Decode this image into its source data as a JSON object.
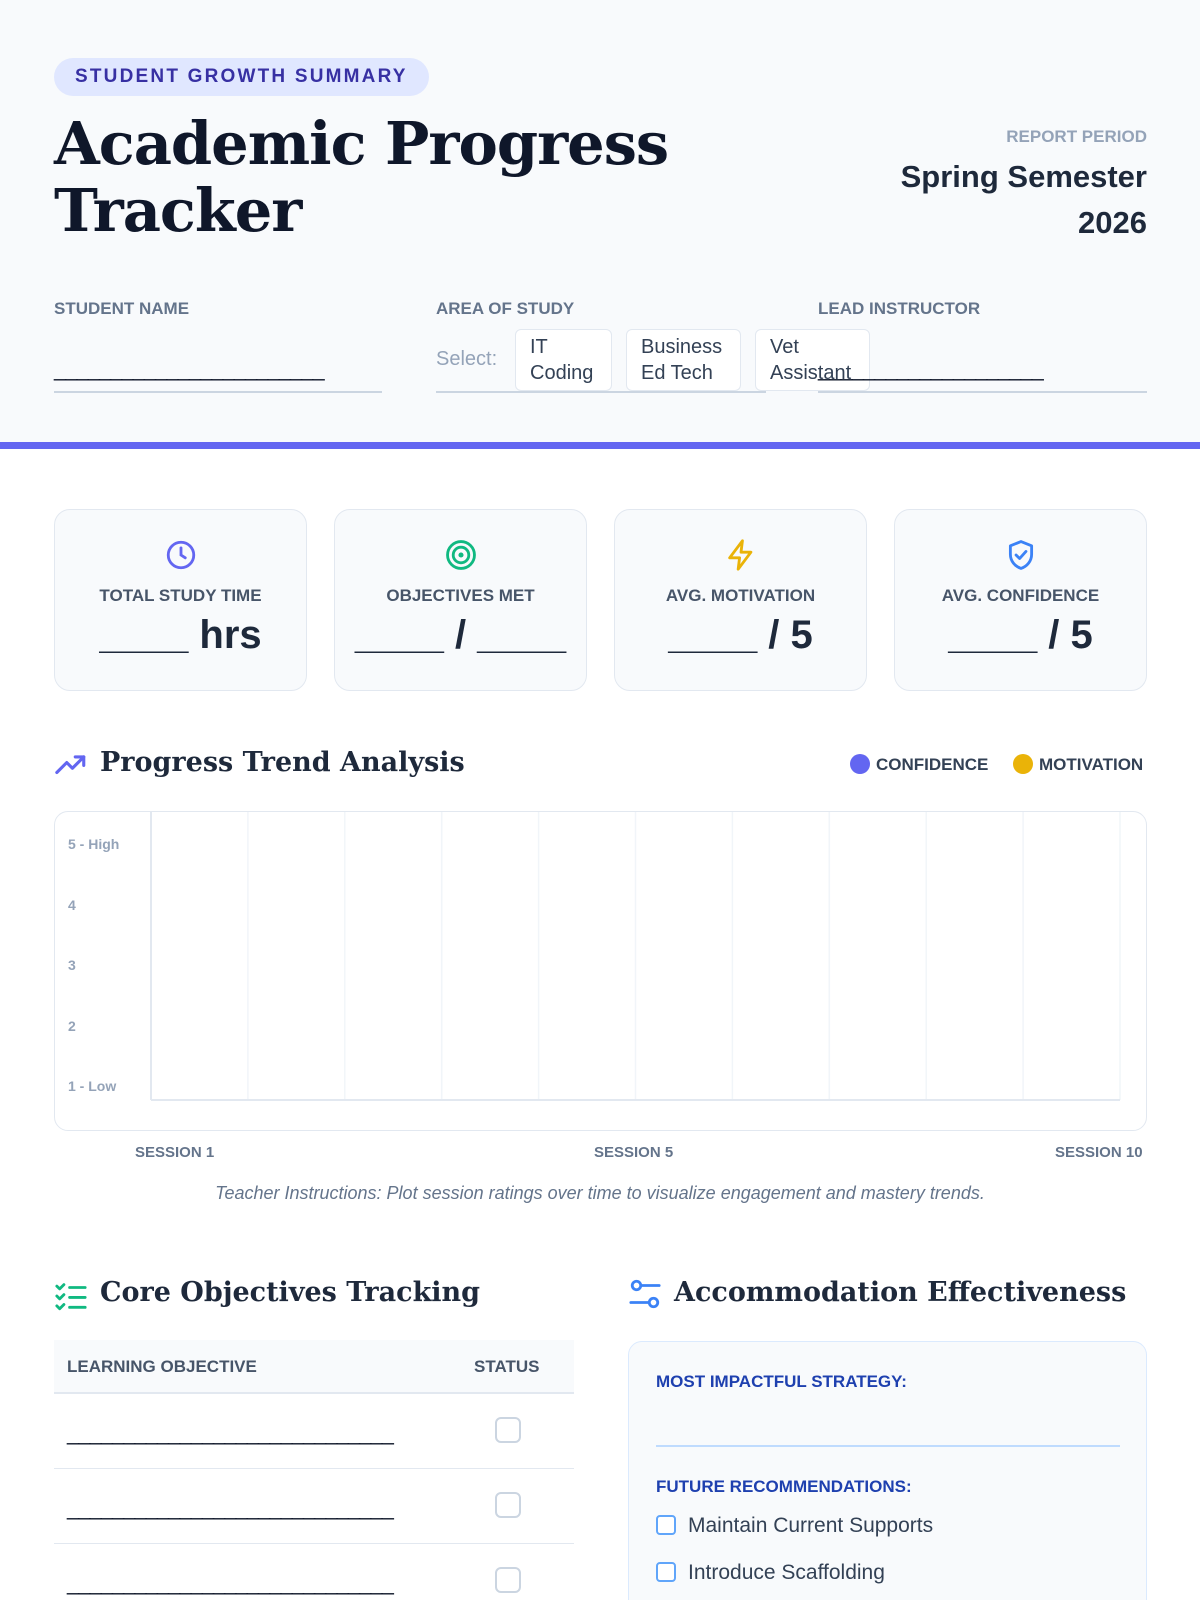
{
  "header": {
    "badge": "STUDENT GROWTH SUMMARY",
    "title": "Academic Progress Tracker",
    "report_period_label": "REPORT PERIOD",
    "report_period_value": "Spring Semester 2026"
  },
  "fields": {
    "student_name_label": "STUDENT NAME",
    "student_name_value": "________________________",
    "area_label": "AREA OF STUDY",
    "select_label": "Select:",
    "options": [
      "IT Coding",
      "Business Ed Tech",
      "Vet Assistant"
    ],
    "instructor_label": "LEAD INSTRUCTOR",
    "instructor_value": "____________________"
  },
  "stats": [
    {
      "icon": "clock-icon",
      "label": "TOTAL STUDY TIME",
      "value": "____ hrs",
      "color": "#6366f1"
    },
    {
      "icon": "target-icon",
      "label": "OBJECTIVES MET",
      "value": "____ / ____",
      "color": "#10b981"
    },
    {
      "icon": "lightning-icon",
      "label": "AVG. MOTIVATION",
      "value": "____ / 5",
      "color": "#eab308"
    },
    {
      "icon": "shield-check-icon",
      "label": "AVG. CONFIDENCE",
      "value": "____ / 5",
      "color": "#3b82f6"
    }
  ],
  "trend": {
    "title": "Progress Trend Analysis",
    "legend": [
      {
        "name": "CONFIDENCE",
        "color": "#6366f1"
      },
      {
        "name": "MOTIVATION",
        "color": "#eab308"
      }
    ],
    "x_labels": [
      "SESSION 1",
      "SESSION 5",
      "SESSION 10"
    ],
    "instructions": "Teacher Instructions: Plot session ratings over time to visualize engagement and mastery trends."
  },
  "chart_data": {
    "type": "line",
    "title": "",
    "y_ticks": [
      "5 - High",
      "4",
      "3",
      "2",
      "1 - Low"
    ],
    "ylim": [
      1,
      5
    ],
    "x_sessions": 10,
    "grid": true,
    "series": []
  },
  "objectives": {
    "title": "Core Objectives Tracking",
    "col_objective": "LEARNING OBJECTIVE",
    "col_status": "STATUS",
    "rows": [
      "_____________________________",
      "_____________________________",
      "_____________________________"
    ]
  },
  "accommodation": {
    "title": "Accommodation Effectiveness",
    "strategy_label": "MOST IMPACTFUL STRATEGY:",
    "recommendations_label": "FUTURE RECOMMENDATIONS:",
    "recommendations": [
      "Maintain Current Supports",
      "Introduce Scaffolding"
    ]
  }
}
